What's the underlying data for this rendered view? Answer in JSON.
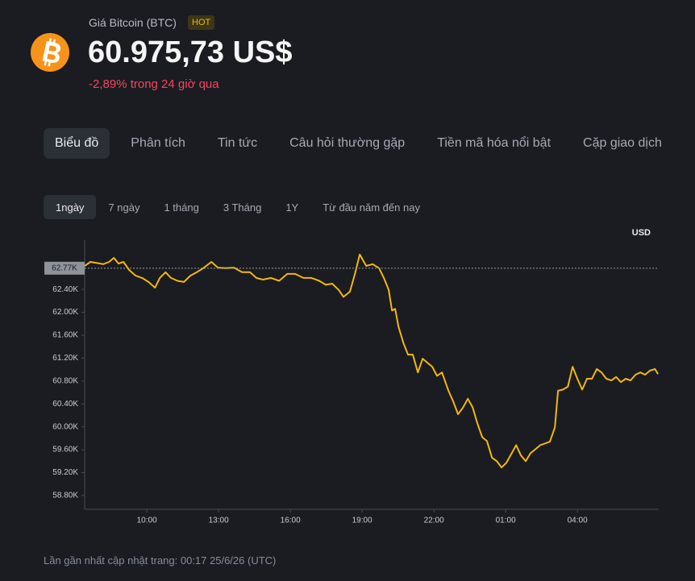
{
  "header": {
    "title": "Giá Bitcoin (BTC)",
    "badge": "HOT",
    "price": "60.975,73 US$",
    "change": "-2,89% trong 24 giờ qua"
  },
  "tabs": [
    "Biểu đồ",
    "Phân tích",
    "Tin tức",
    "Câu hỏi thường gặp",
    "Tiền mã hóa nổi bật",
    "Cặp giao dịch"
  ],
  "ranges": [
    "1ngày",
    "7 ngày",
    "1 tháng",
    "3 Tháng",
    "1Y",
    "Từ đầu năm đến nay"
  ],
  "footer": "Lần gần nhất cập nhật trang: 00:17 25/6/26 (UTC)",
  "chart_data": {
    "type": "line",
    "ylabel": "USD",
    "color": "#f0b90b",
    "x": [
      7.4,
      7.64,
      7.91,
      8.18,
      8.42,
      8.62,
      8.82,
      9.02,
      9.26,
      9.53,
      9.8,
      10.07,
      10.34,
      10.54,
      10.78,
      11.01,
      11.28,
      11.55,
      11.82,
      12.09,
      12.36,
      12.7,
      12.97,
      13.3,
      13.64,
      13.98,
      14.31,
      14.58,
      14.85,
      15.19,
      15.53,
      15.87,
      16.2,
      16.54,
      16.88,
      17.21,
      17.48,
      17.75,
      18.02,
      18.22,
      18.49,
      18.7,
      18.9,
      19.17,
      19.44,
      19.71,
      19.91,
      20.11,
      20.25,
      20.38,
      20.52,
      20.72,
      20.92,
      21.12,
      21.33,
      21.53,
      21.73,
      21.93,
      22.13,
      22.34,
      22.61,
      22.81,
      23.01,
      23.21,
      23.42,
      23.62,
      23.82,
      24.02,
      24.22,
      24.43,
      24.63,
      24.83,
      25.03,
      25.24,
      25.44,
      25.64,
      25.84,
      26.04,
      26.25,
      26.45,
      26.65,
      26.85,
      27.06,
      27.19,
      27.39,
      27.6,
      27.8,
      28.0,
      28.2,
      28.4,
      28.61,
      28.81,
      29.01,
      29.21,
      29.42,
      29.62,
      29.82,
      30.02,
      30.22,
      30.43,
      30.63,
      30.83,
      31.03,
      31.24,
      31.37
    ],
    "values": [
      62810,
      62880,
      62860,
      62840,
      62880,
      62950,
      62850,
      62880,
      62740,
      62640,
      62600,
      62530,
      62430,
      62600,
      62700,
      62600,
      62550,
      62530,
      62640,
      62700,
      62770,
      62880,
      62780,
      62770,
      62780,
      62700,
      62700,
      62600,
      62570,
      62600,
      62550,
      62670,
      62670,
      62600,
      62600,
      62550,
      62480,
      62500,
      62390,
      62270,
      62360,
      62670,
      63010,
      62810,
      62840,
      62770,
      62600,
      62390,
      62030,
      62060,
      61750,
      61470,
      61260,
      61260,
      60950,
      61190,
      61120,
      61050,
      60890,
      60950,
      60630,
      60440,
      60220,
      60330,
      60490,
      60340,
      60060,
      59820,
      59750,
      59460,
      59400,
      59290,
      59370,
      59530,
      59680,
      59500,
      59400,
      59540,
      59610,
      59680,
      59710,
      59740,
      59990,
      60630,
      60650,
      60700,
      61050,
      60840,
      60650,
      60840,
      60840,
      61010,
      60950,
      60840,
      60810,
      60870,
      60780,
      60840,
      60810,
      60910,
      60950,
      60910,
      60980,
      61010,
      60920
    ],
    "xlim": [
      7.4,
      31.4
    ],
    "xticks": [
      {
        "value": 10,
        "label": "10:00"
      },
      {
        "value": 13,
        "label": "13:00"
      },
      {
        "value": 16,
        "label": "16:00"
      },
      {
        "value": 19,
        "label": "19:00"
      },
      {
        "value": 22,
        "label": "22:00"
      },
      {
        "value": 25,
        "label": "01:00"
      },
      {
        "value": 28,
        "label": "04:00"
      }
    ],
    "ylim": [
      58560,
      63260
    ],
    "yticks": [
      {
        "value": 58800,
        "label": "58.80K"
      },
      {
        "value": 59200,
        "label": "59.20K"
      },
      {
        "value": 59600,
        "label": "59.60K"
      },
      {
        "value": 60000,
        "label": "60.00K"
      },
      {
        "value": 60400,
        "label": "60.40K"
      },
      {
        "value": 60800,
        "label": "60.80K"
      },
      {
        "value": 61200,
        "label": "61.20K"
      },
      {
        "value": 61600,
        "label": "61.60K"
      },
      {
        "value": 62000,
        "label": "62.00K"
      },
      {
        "value": 62400,
        "label": "62.40K"
      }
    ],
    "reference_line": {
      "value": 62770,
      "label": "62.77K"
    }
  }
}
